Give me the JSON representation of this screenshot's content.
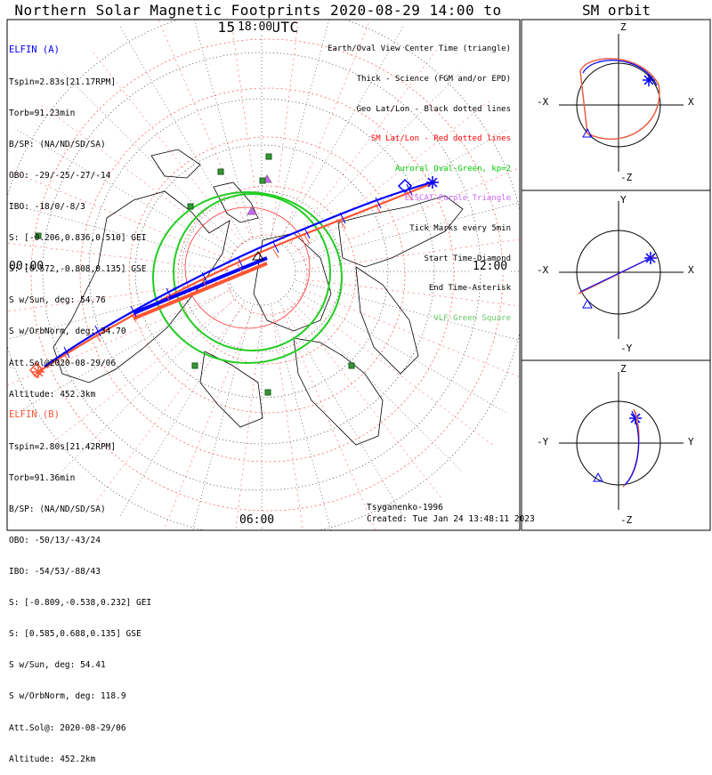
{
  "title": "Northern Solar Magnetic Footprints 2020-08-29 14:00 to 15:30 UTC",
  "orbit_title": "SM orbit",
  "time_labels": {
    "top": "18:00",
    "left": "00:00",
    "right": "12:00",
    "bottom": "06:00"
  },
  "elfin_a": {
    "name": "ELFIN (A)",
    "color": "#0000ff",
    "lines": [
      "Tspin=2.83s[21.17RPM]",
      "Torb=91.23min",
      "B/SP: (NA/ND/SD/SA)",
      "OBO: -29/-25/-27/-14",
      "IBO: -18/0/-8/3",
      "S: [-0.206,0.836,0.510] GEI",
      "S: [0.572,-0.808,0.135] GSE",
      "S w/Sun, deg: 54.76",
      "S w/OrbNorm, deg: 34.70",
      "Att.Sol@2020-08-29/06",
      "Altitude: 452.3km"
    ]
  },
  "elfin_b": {
    "name": "ELFIN (B)",
    "color": "#ff5533",
    "lines": [
      "Tspin=2.80s[21.42RPM]",
      "Torb=91.36min",
      "B/SP: (NA/ND/SD/SA)",
      "OBO: -50/13/-43/24",
      "IBO: -54/53/-88/43",
      "S: [-0.809,-0.538,0.232] GEI",
      "S: [0.585,0.688,0.135] GSE",
      "S w/Sun, deg: 54.41",
      "S w/OrbNorm, deg: 118.9",
      "Att.Sol@: 2020-08-29/06",
      "Altitude: 452.2km"
    ]
  },
  "legend": [
    {
      "text": "Earth/Oval View Center Time (triangle)",
      "color": "#000000"
    },
    {
      "text": "Thick - Science (FGM and/or EPD)",
      "color": "#000000"
    },
    {
      "text": "Geo Lat/Lon - Black dotted lines",
      "color": "#000000"
    },
    {
      "text": "SM Lat/Lon - Red dotted lines",
      "color": "#ff0000"
    },
    {
      "text": "Auroral Oval-Green, kp=2",
      "color": "#00cc00"
    },
    {
      "text": "EISCAT-Purple Triangle",
      "color": "#cc66ff"
    },
    {
      "text": "Tick Marks every 5min",
      "color": "#000000"
    },
    {
      "text": "Start Time-Diamond",
      "color": "#000000"
    },
    {
      "text": "End Time-Asterisk",
      "color": "#000000"
    },
    {
      "text": "VLF-Green Square",
      "color": "#66cc66"
    }
  ],
  "credit": {
    "author": "Tsyganenko-1996",
    "created": "Created: Tue Jan 24 13:48:11 2023"
  },
  "orbit_panels": [
    {
      "name": "XZ",
      "top": "Z",
      "bottom": "-Z",
      "left": "-X",
      "right": "X"
    },
    {
      "name": "XY",
      "top": "Y",
      "bottom": "-Y",
      "left": "-X",
      "right": "X"
    },
    {
      "name": "YZ",
      "top": "Z",
      "bottom": "-Z",
      "left": "-Y",
      "right": "Y"
    }
  ],
  "chart_data": {
    "type": "polar-map",
    "title": "Northern Solar Magnetic Footprints 2020-08-29 14:00 to 15:30 UTC",
    "time_range": [
      "2020-08-29 14:00",
      "2020-08-29 15:30"
    ],
    "projection": "north polar, SM coordinates",
    "mlt_labels": [
      "18:00",
      "00:00",
      "12:00",
      "06:00"
    ],
    "series": [
      {
        "name": "ELFIN (A)",
        "color": "#0000ff"
      },
      {
        "name": "ELFIN (B)",
        "color": "#ff5533"
      }
    ],
    "auroral_oval": {
      "kp": 2,
      "color": "#00cc00"
    },
    "markers": [
      "EISCAT-Purple Triangle",
      "VLF-Green Square",
      "Start Time-Diamond",
      "End Time-Asterisk"
    ]
  }
}
